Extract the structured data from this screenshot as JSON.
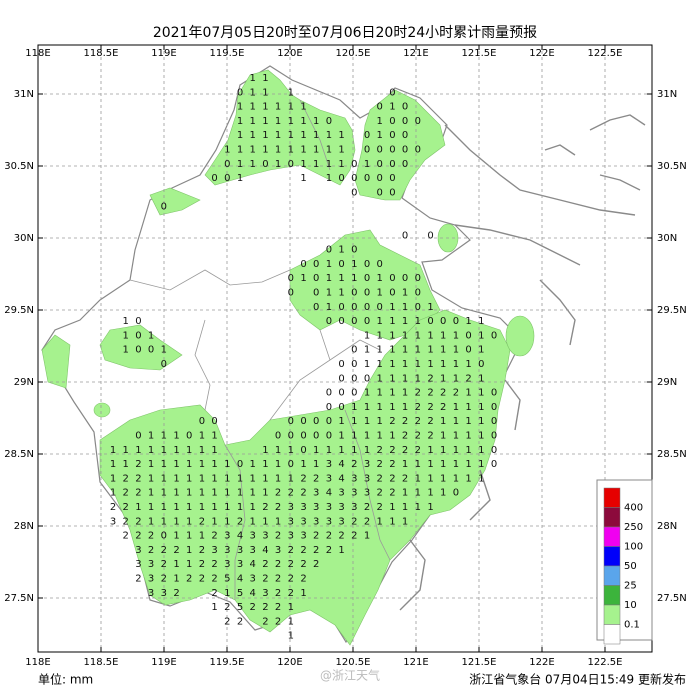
{
  "title": "2021年07月05日20时至07月06日20时24小时累计雨量预报",
  "map": {
    "lon_ticks": [
      "118E",
      "118.5E",
      "119E",
      "119.5E",
      "120E",
      "120.5E",
      "121E",
      "121.5E",
      "122E",
      "122.5E"
    ],
    "lat_ticks": [
      "31N",
      "30.5N",
      "30N",
      "29.5N",
      "29N",
      "28.5N",
      "28N",
      "27.5N"
    ],
    "rainfall_grid": [
      [
        null,
        null,
        null,
        null,
        null,
        null,
        null,
        null,
        null,
        null,
        null,
        1,
        1
      ],
      [
        null,
        null,
        null,
        null,
        null,
        null,
        null,
        null,
        null,
        null,
        0,
        1,
        1,
        null,
        1,
        null,
        null,
        null,
        null,
        null,
        null,
        null,
        0
      ],
      [
        null,
        null,
        null,
        null,
        null,
        null,
        null,
        null,
        null,
        null,
        1,
        1,
        1,
        1,
        1,
        1,
        null,
        null,
        null,
        null,
        null,
        0,
        1,
        0
      ],
      [
        null,
        null,
        null,
        null,
        null,
        null,
        null,
        null,
        null,
        null,
        1,
        1,
        1,
        1,
        1,
        1,
        1,
        0,
        null,
        null,
        null,
        1,
        0,
        0,
        0
      ],
      [
        null,
        null,
        null,
        null,
        null,
        null,
        null,
        null,
        null,
        null,
        1,
        1,
        1,
        1,
        1,
        1,
        1,
        1,
        1,
        null,
        0,
        1,
        0,
        0
      ],
      [
        null,
        null,
        null,
        null,
        null,
        null,
        null,
        null,
        null,
        1,
        1,
        1,
        1,
        1,
        1,
        1,
        1,
        1,
        1,
        null,
        0,
        0,
        0,
        0,
        0
      ],
      [
        null,
        null,
        null,
        null,
        null,
        null,
        null,
        null,
        null,
        0,
        1,
        1,
        0,
        1,
        0,
        1,
        1,
        1,
        1,
        0,
        1,
        0,
        0,
        0
      ],
      [
        null,
        null,
        null,
        null,
        null,
        null,
        null,
        null,
        0,
        0,
        1,
        null,
        null,
        null,
        null,
        1,
        null,
        1,
        0,
        0,
        0,
        0,
        0
      ],
      [
        null,
        null,
        null,
        null,
        null,
        null,
        null,
        null,
        null,
        null,
        null,
        null,
        null,
        null,
        null,
        null,
        null,
        null,
        null,
        0,
        null,
        0,
        0
      ],
      [
        null,
        null,
        null,
        null,
        0
      ],
      [],
      [
        null,
        null,
        null,
        null,
        null,
        null,
        null,
        null,
        null,
        null,
        null,
        null,
        null,
        null,
        null,
        null,
        null,
        null,
        null,
        null,
        null,
        null,
        null,
        0,
        null,
        0
      ],
      [
        null,
        null,
        null,
        null,
        null,
        null,
        null,
        null,
        null,
        null,
        null,
        null,
        null,
        null,
        null,
        null,
        null,
        0,
        1,
        0
      ],
      [
        null,
        null,
        null,
        null,
        null,
        null,
        null,
        null,
        null,
        null,
        null,
        null,
        null,
        null,
        null,
        0,
        0,
        1,
        0,
        1,
        0,
        0
      ],
      [
        null,
        null,
        null,
        null,
        null,
        null,
        null,
        null,
        null,
        null,
        null,
        null,
        null,
        null,
        0,
        1,
        0,
        1,
        1,
        1,
        0,
        1,
        0,
        0,
        0
      ],
      [
        null,
        null,
        null,
        null,
        null,
        null,
        null,
        null,
        null,
        null,
        null,
        null,
        null,
        null,
        0,
        null,
        0,
        1,
        1,
        0,
        0,
        1,
        0,
        1,
        0
      ],
      [
        null,
        null,
        null,
        null,
        null,
        null,
        null,
        null,
        null,
        null,
        null,
        null,
        null,
        null,
        null,
        null,
        0,
        1,
        0,
        0,
        0,
        0,
        1,
        1,
        0,
        1
      ],
      [
        null,
        1,
        0,
        null,
        null,
        null,
        null,
        null,
        null,
        null,
        null,
        null,
        null,
        null,
        null,
        null,
        null,
        0,
        0,
        0,
        0,
        1,
        1,
        1,
        1,
        0,
        0,
        0,
        1,
        1
      ],
      [
        null,
        1,
        0,
        1,
        null,
        null,
        null,
        null,
        null,
        null,
        null,
        null,
        null,
        null,
        null,
        null,
        null,
        null,
        null,
        null,
        1,
        1,
        1,
        1,
        1,
        1,
        1,
        1,
        0,
        1,
        0
      ],
      [
        null,
        1,
        0,
        0,
        1,
        null,
        null,
        null,
        null,
        null,
        null,
        null,
        null,
        null,
        null,
        null,
        null,
        null,
        null,
        0,
        1,
        1,
        1,
        1,
        1,
        1,
        1,
        1,
        0,
        1
      ],
      [
        null,
        null,
        null,
        null,
        0,
        null,
        null,
        null,
        null,
        null,
        null,
        null,
        null,
        null,
        null,
        null,
        null,
        null,
        0,
        0,
        1,
        1,
        1,
        1,
        1,
        1,
        1,
        1,
        1,
        0
      ],
      [
        null,
        null,
        null,
        null,
        null,
        null,
        null,
        null,
        null,
        null,
        null,
        null,
        null,
        null,
        null,
        null,
        null,
        null,
        0,
        0,
        0,
        1,
        1,
        1,
        1,
        2,
        1,
        1,
        2,
        1
      ],
      [
        null,
        null,
        null,
        null,
        null,
        null,
        null,
        null,
        null,
        null,
        null,
        null,
        null,
        null,
        null,
        null,
        null,
        0,
        0,
        0,
        1,
        1,
        1,
        1,
        2,
        2,
        2,
        2,
        1,
        1,
        0
      ],
      [
        null,
        null,
        null,
        null,
        null,
        null,
        null,
        null,
        null,
        null,
        null,
        null,
        null,
        null,
        null,
        null,
        null,
        0,
        0,
        1,
        1,
        1,
        1,
        1,
        2,
        2,
        2,
        1,
        1,
        1,
        0
      ],
      [
        null,
        null,
        null,
        null,
        null,
        null,
        null,
        0,
        0,
        null,
        null,
        null,
        null,
        null,
        0,
        0,
        0,
        0,
        1,
        1,
        1,
        1,
        2,
        2,
        2,
        2,
        1,
        1,
        1,
        1,
        0
      ],
      [
        null,
        null,
        0,
        1,
        1,
        1,
        0,
        1,
        1,
        null,
        null,
        null,
        null,
        0,
        0,
        0,
        0,
        0,
        1,
        1,
        1,
        1,
        1,
        2,
        2,
        2,
        1,
        1,
        1,
        1,
        0
      ],
      [
        1,
        1,
        1,
        1,
        1,
        1,
        1,
        1,
        1,
        null,
        null,
        null,
        1,
        1,
        1,
        0,
        1,
        1,
        1,
        1,
        1,
        2,
        2,
        2,
        2,
        1,
        1,
        1,
        1,
        1,
        0
      ],
      [
        1,
        1,
        2,
        1,
        1,
        1,
        1,
        1,
        1,
        1,
        0,
        1,
        1,
        1,
        0,
        1,
        1,
        3,
        4,
        2,
        3,
        2,
        2,
        1,
        1,
        1,
        1,
        1,
        1,
        1,
        0
      ],
      [
        1,
        2,
        2,
        1,
        1,
        1,
        1,
        1,
        1,
        1,
        1,
        1,
        1,
        1,
        1,
        2,
        2,
        3,
        4,
        3,
        3,
        2,
        2,
        2,
        1,
        1,
        1,
        1,
        1,
        1
      ],
      [
        1,
        2,
        2,
        1,
        1,
        1,
        1,
        1,
        1,
        1,
        1,
        1,
        1,
        2,
        2,
        2,
        3,
        4,
        3,
        3,
        3,
        2,
        2,
        1,
        1,
        1,
        1,
        0
      ],
      [
        2,
        2,
        1,
        1,
        1,
        1,
        1,
        1,
        1,
        1,
        1,
        1,
        2,
        2,
        3,
        3,
        3,
        3,
        3,
        3,
        2,
        2,
        1,
        1,
        1,
        1
      ],
      [
        3,
        2,
        2,
        1,
        1,
        1,
        1,
        2,
        1,
        1,
        2,
        1,
        1,
        1,
        3,
        3,
        3,
        3,
        3,
        2,
        2,
        1,
        1,
        1
      ],
      [
        null,
        2,
        2,
        2,
        0,
        1,
        1,
        1,
        2,
        3,
        4,
        3,
        3,
        2,
        3,
        3,
        2,
        2,
        2,
        2,
        1
      ],
      [
        null,
        null,
        3,
        2,
        2,
        2,
        1,
        2,
        3,
        3,
        3,
        3,
        4,
        3,
        2,
        2,
        2,
        2,
        1
      ],
      [
        null,
        null,
        3,
        3,
        2,
        1,
        1,
        2,
        2,
        3,
        3,
        4,
        2,
        2,
        2,
        2,
        2
      ],
      [
        null,
        null,
        2,
        3,
        2,
        1,
        2,
        2,
        2,
        5,
        4,
        3,
        2,
        2,
        2,
        2
      ],
      [
        null,
        null,
        null,
        3,
        3,
        2,
        null,
        null,
        2,
        1,
        5,
        4,
        3,
        2,
        2,
        1
      ],
      [
        null,
        null,
        null,
        null,
        null,
        null,
        null,
        null,
        1,
        2,
        5,
        2,
        2,
        2,
        1
      ],
      [
        null,
        null,
        null,
        null,
        null,
        null,
        null,
        null,
        null,
        2,
        2,
        null,
        2,
        2,
        1
      ],
      [
        null,
        null,
        null,
        null,
        null,
        null,
        null,
        null,
        null,
        null,
        null,
        null,
        null,
        null,
        1
      ]
    ]
  },
  "legend": {
    "labels": [
      400,
      250,
      100,
      50,
      25,
      10,
      0.1
    ],
    "colors": [
      "#e60000",
      "#8c0a3c",
      "#f000f0",
      "#0000fa",
      "#5aa5eb",
      "#3cb43c",
      "#a6f28e",
      "#ffffff"
    ]
  },
  "footer": {
    "unit": "单位: mm",
    "watermark": "@浙江天气",
    "issuer": "浙江省气象台 07月04日15:49 更新发布"
  }
}
